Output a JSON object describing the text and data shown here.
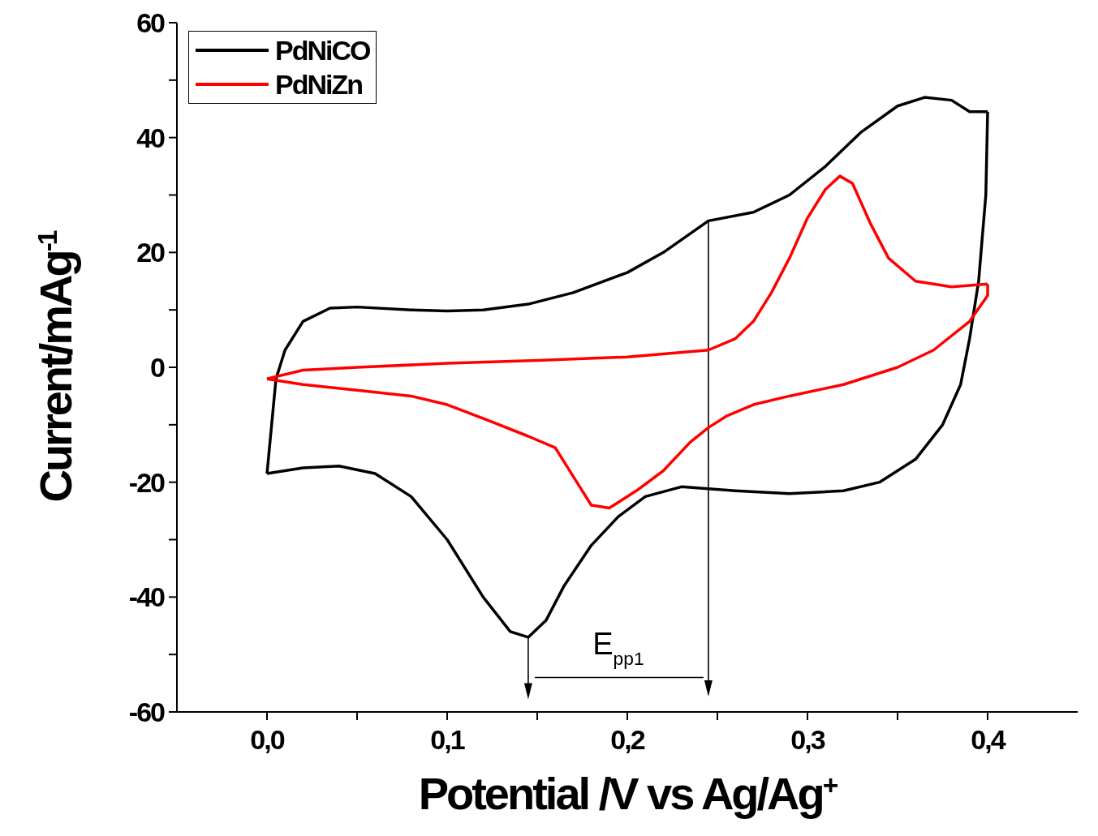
{
  "chart_data": {
    "type": "line",
    "xlabel": "Potential /V vs Ag/Ag$^{+}$",
    "ylabel": "Current/mAg$^{-1}$",
    "xlim": [
      -0.05,
      0.45
    ],
    "xticks": [
      {
        "value": 0,
        "label": "0,0"
      },
      {
        "value": 0.05,
        "label": null
      },
      {
        "value": 0.1,
        "label": "0,1"
      },
      {
        "value": 0.15,
        "label": null
      },
      {
        "value": 0.2,
        "label": "0,2"
      },
      {
        "value": 0.25,
        "label": null
      },
      {
        "value": 0.3,
        "label": "0,3"
      },
      {
        "value": 0.35,
        "label": null
      },
      {
        "value": 0.4,
        "label": "0,4"
      }
    ],
    "ylim": [
      -60,
      60
    ],
    "yticks": [
      -60,
      {
        "value": -50,
        "label": null
      },
      -40,
      {
        "value": -30,
        "label": null
      },
      -20,
      {
        "value": -10,
        "label": null
      },
      0,
      {
        "value": 10,
        "label": null
      },
      20,
      {
        "value": 30,
        "label": null
      },
      40,
      {
        "value": 50,
        "label": null
      },
      60
    ],
    "grid": false,
    "legend": "top left",
    "marker": "none",
    "line_style": "solid",
    "annotations": [
      "E$_{pp1}$"
    ],
    "series": [
      {
        "name": "PdNiCO",
        "color": "#000000",
        "x": [
          0,
          0.005,
          0.01,
          0.02,
          0.035,
          0.05,
          0.08,
          0.1,
          0.12,
          0.145,
          0.17,
          0.2,
          0.22,
          0.245,
          0.27,
          0.29,
          0.31,
          0.33,
          0.35,
          0.365,
          0.38,
          0.39,
          0.4
        ],
        "values": [
          -18.5,
          -2,
          3,
          8,
          10.3,
          10.5,
          10,
          9.8,
          10,
          11,
          13,
          16.5,
          20,
          25.5,
          27,
          30,
          35,
          41,
          45.5,
          47,
          46.5,
          44.5,
          44.5
        ]
      },
      {
        "color": "#000000",
        "x": [
          0.4,
          0.399,
          0.395,
          0.39,
          0.385,
          0.375,
          0.36,
          0.34,
          0.32,
          0.29,
          0.26,
          0.23,
          0.21,
          0.195,
          0.18,
          0.165,
          0.155,
          0.145,
          0.135,
          0.12,
          0.1,
          0.08,
          0.06,
          0.04,
          0.02,
          0
        ],
        "values": [
          44.5,
          30,
          15,
          5,
          -3,
          -10,
          -16,
          -20,
          -21.5,
          -22,
          -21.5,
          -20.8,
          -22.5,
          -26,
          -31,
          -38,
          -44,
          -47,
          -46,
          -40,
          -30,
          -22.5,
          -18.5,
          -17.2,
          -17.5,
          -18.5
        ]
      },
      {
        "name": "PdNiZn",
        "color": "#ff0000",
        "x": [
          0,
          0.02,
          0.05,
          0.1,
          0.15,
          0.2,
          0.245,
          0.26,
          0.27,
          0.28,
          0.29,
          0.3,
          0.31,
          0.318,
          0.325,
          0.335,
          0.345,
          0.36,
          0.38,
          0.4
        ],
        "values": [
          -2,
          -0.5,
          0,
          0.7,
          1.2,
          1.8,
          3,
          5,
          8,
          13,
          19,
          26,
          31,
          33.3,
          32,
          25,
          19,
          15,
          14,
          14.5
        ]
      },
      {
        "color": "#ff0000",
        "x": [
          0.4,
          0.4,
          0.39,
          0.37,
          0.35,
          0.32,
          0.29,
          0.27,
          0.255,
          0.245,
          0.235,
          0.22,
          0.205,
          0.19,
          0.18,
          0.17,
          0.16,
          0.145,
          0.125,
          0.1,
          0.08,
          0.05,
          0.02,
          0
        ],
        "values": [
          14.5,
          12.5,
          8,
          3,
          0,
          -3,
          -5,
          -6.5,
          -8.5,
          -10.5,
          -13,
          -18,
          -21.5,
          -24.5,
          -24,
          -19,
          -14,
          -12,
          -9.5,
          -6.5,
          -5,
          -4,
          -3,
          -2
        ]
      }
    ]
  }
}
